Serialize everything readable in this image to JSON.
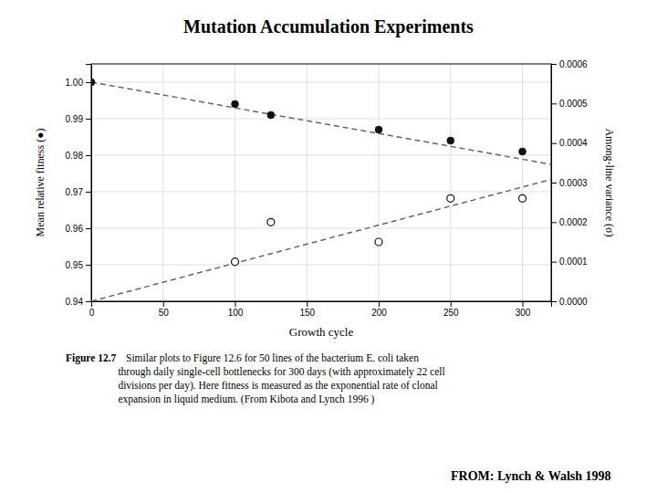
{
  "chart_data": {
    "type": "line",
    "title": "Mutation Accumulation Experiments",
    "x_label": "Growth cycle",
    "y_label": "Mean relative fitness (●)",
    "y2_label": "Among-line variance (σ)",
    "xlim": [
      0,
      320
    ],
    "xticks": [
      0,
      50,
      100,
      150,
      200,
      250,
      300
    ],
    "ylim": [
      0.94,
      1.005
    ],
    "yticks": [
      0.94,
      0.95,
      0.96,
      0.97,
      0.98,
      0.99,
      {
        "value": 1.0,
        "label": "1.00"
      }
    ],
    "y2lim": [
      0,
      0.0006
    ],
    "y2ticks": [
      {
        "value": 0,
        "label": "0.0000"
      },
      0.0001,
      0.0002,
      0.0003,
      0.0004,
      0.0005,
      0.0006
    ],
    "grid": true,
    "series": [
      {
        "type": "line",
        "line_style": "dashed",
        "color": "#666666",
        "x": [
          0,
          320
        ],
        "values": [
          1.0,
          0.9775
        ]
      },
      {
        "type": "line",
        "line_style": "dashed",
        "color": "#666666",
        "axis": "y2",
        "x": [
          0,
          320
        ],
        "values": [
          0.0,
          0.000308
        ]
      },
      {
        "type": "scatter",
        "marker": "circle",
        "color": "#111111",
        "x": [
          0,
          100,
          125,
          200,
          250,
          300
        ],
        "values": [
          1.0,
          0.994,
          0.991,
          0.987,
          0.984,
          0.981
        ]
      },
      {
        "type": "scatter",
        "marker": "circle-open",
        "color": "#111111",
        "axis": "y2",
        "x": [
          100,
          125,
          200,
          250,
          300
        ],
        "values": [
          0.0001,
          0.0002,
          0.00015,
          0.00026,
          0.00026
        ]
      }
    ],
    "caption_label": "Figure 12.7",
    "caption": "   Similar plots to Figure 12.6 for 50 lines of the bacterium E. coli taken\nthrough daily single-cell bottlenecks for 300 days (with approximately 22 cell\ndivisions per day). Here fitness is measured as the exponential rate of clonal\nexpansion in liquid medium. (From Kibota and Lynch 1996 )",
    "source": "FROM: Lynch & Walsh 1998"
  }
}
